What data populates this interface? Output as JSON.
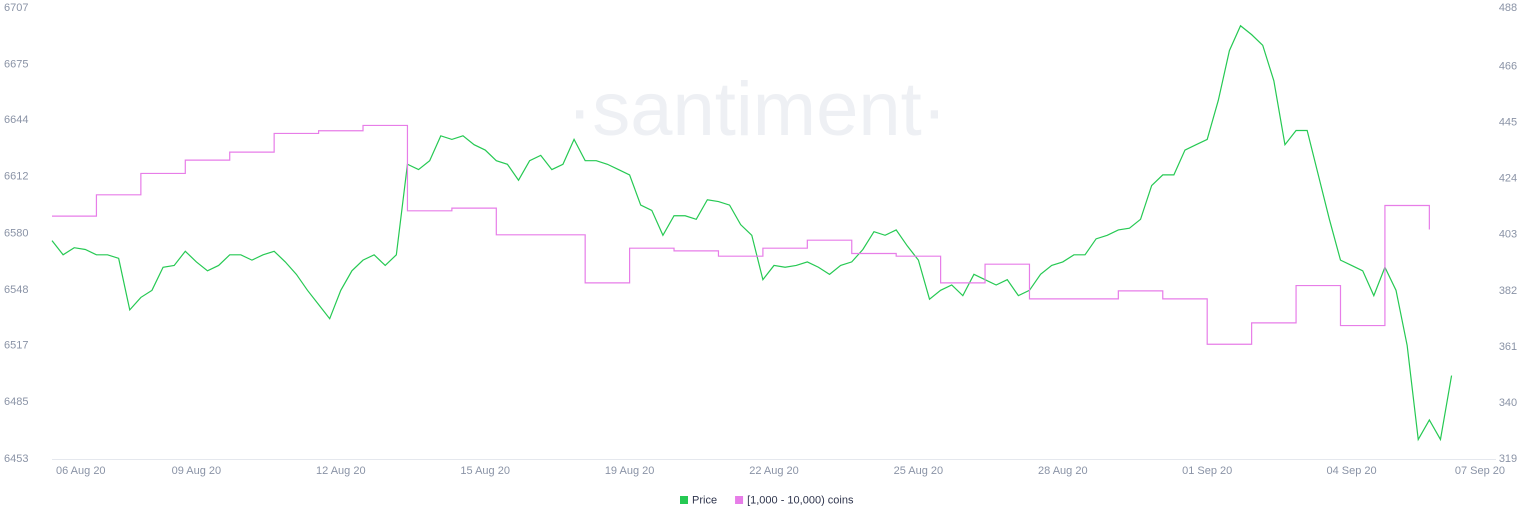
{
  "chart_data": {
    "type": "line",
    "watermark": "·santiment·",
    "categories": [
      "06 Aug 20",
      null,
      null,
      null,
      null,
      null,
      null,
      null,
      null,
      null,
      null,
      null,
      null,
      "09 Aug 20",
      null,
      null,
      null,
      null,
      null,
      null,
      null,
      null,
      null,
      null,
      null,
      null,
      "12 Aug 20",
      null,
      null,
      null,
      null,
      null,
      null,
      null,
      null,
      null,
      null,
      null,
      null,
      "15 Aug 20",
      null,
      null,
      null,
      null,
      null,
      null,
      null,
      null,
      null,
      null,
      null,
      null,
      "19 Aug 20",
      null,
      null,
      null,
      null,
      null,
      null,
      null,
      null,
      null,
      null,
      null,
      null,
      "22 Aug 20",
      null,
      null,
      null,
      null,
      null,
      null,
      null,
      null,
      null,
      null,
      null,
      null,
      "25 Aug 20",
      null,
      null,
      null,
      null,
      null,
      null,
      null,
      null,
      null,
      null,
      null,
      null,
      "28 Aug 20",
      null,
      null,
      null,
      null,
      null,
      null,
      null,
      null,
      null,
      null,
      null,
      null,
      "01 Sep 20",
      null,
      null,
      null,
      null,
      null,
      null,
      null,
      null,
      null,
      null,
      null,
      null,
      "04 Sep 20",
      null,
      null,
      null,
      null,
      null,
      null,
      null,
      null,
      null,
      null,
      null,
      null,
      "07 Sep 20"
    ],
    "series": [
      {
        "name": "Price",
        "color": "#26c953",
        "axis": "y",
        "step": false,
        "values": [
          6576,
          6568,
          6572,
          6571,
          6568,
          6568,
          6566,
          6537,
          6544,
          6548,
          6561,
          6562,
          6570,
          6564,
          6559,
          6562,
          6568,
          6568,
          6565,
          6568,
          6570,
          6564,
          6557,
          6548,
          6540,
          6532,
          6548,
          6559,
          6565,
          6568,
          6562,
          6568,
          6619,
          6616,
          6621,
          6635,
          6633,
          6635,
          6630,
          6627,
          6621,
          6619,
          6610,
          6621,
          6624,
          6616,
          6619,
          6633,
          6621,
          6621,
          6619,
          6616,
          6613,
          6596,
          6593,
          6579,
          6590,
          6590,
          6588,
          6599,
          6598,
          6596,
          6585,
          6579,
          6554,
          6562,
          6561,
          6562,
          6564,
          6561,
          6557,
          6562,
          6564,
          6571,
          6581,
          6579,
          6582,
          6573,
          6565,
          6543,
          6548,
          6551,
          6545,
          6557,
          6554,
          6551,
          6554,
          6545,
          6548,
          6557,
          6562,
          6564,
          6568,
          6568,
          6577,
          6579,
          6582,
          6583,
          6588,
          6607,
          6613,
          6613,
          6627,
          6630,
          6633,
          6655,
          6683,
          6697,
          6692,
          6686,
          6666,
          6630,
          6638,
          6638,
          6613,
          6588,
          6565,
          6562,
          6559,
          6545,
          6561,
          6548,
          6517,
          6464,
          6475,
          6464,
          6500,
          null,
          null,
          null,
          null
        ]
      },
      {
        "name": "[1,000 - 10,000) coins",
        "color": "#e77de8",
        "axis": "y2",
        "step": true,
        "values": [
          410,
          410,
          410,
          410,
          418,
          418,
          418,
          418,
          426,
          426,
          426,
          426,
          431,
          431,
          431,
          431,
          434,
          434,
          434,
          434,
          441,
          441,
          441,
          441,
          442,
          442,
          442,
          442,
          444,
          444,
          444,
          444,
          412,
          412,
          412,
          412,
          413,
          413,
          413,
          413,
          403,
          403,
          403,
          403,
          403,
          403,
          403,
          403,
          385,
          385,
          385,
          385,
          398,
          398,
          398,
          398,
          397,
          397,
          397,
          397,
          395,
          395,
          395,
          395,
          398,
          398,
          398,
          398,
          401,
          401,
          401,
          401,
          396,
          396,
          396,
          396,
          395,
          395,
          395,
          395,
          385,
          385,
          385,
          385,
          392,
          392,
          392,
          392,
          379,
          379,
          379,
          379,
          379,
          379,
          379,
          379,
          382,
          382,
          382,
          382,
          379,
          379,
          379,
          379,
          362,
          362,
          362,
          362,
          370,
          370,
          370,
          370,
          384,
          384,
          384,
          384,
          369,
          369,
          369,
          369,
          414,
          414,
          414,
          414,
          405,
          null,
          null,
          null,
          null,
          null,
          null
        ]
      }
    ],
    "ylim": [
      6453,
      6707
    ],
    "yticks": [
      6453,
      6485,
      6517,
      6548,
      6580,
      6612,
      6644,
      6675,
      6707
    ],
    "y2lim": [
      319,
      488
    ],
    "y2ticks": [
      319,
      340,
      361,
      382,
      403,
      424,
      445,
      466,
      488
    ],
    "grid": false
  }
}
